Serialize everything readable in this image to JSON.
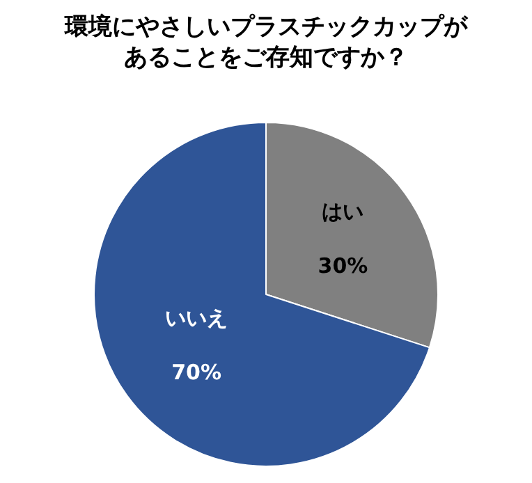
{
  "chart_data": {
    "type": "pie",
    "title": "環境にやさしいプラスチックカップがあることをご存知ですか？",
    "categories": [
      "はい",
      "いいえ"
    ],
    "values": [
      30,
      70
    ],
    "value_labels": [
      "30%",
      "70%"
    ],
    "colors": [
      "#808080",
      "#2f5597"
    ],
    "legend": false
  }
}
